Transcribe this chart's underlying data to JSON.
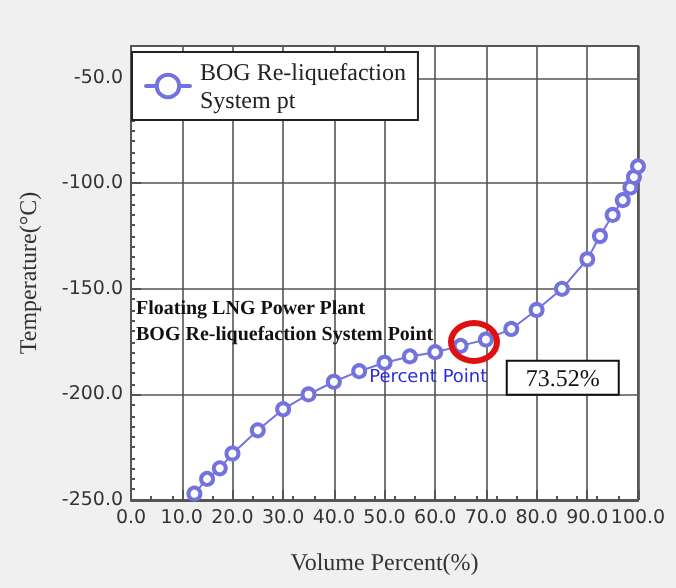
{
  "chart_data": {
    "type": "line",
    "xlabel": "Volume Percent(%)",
    "ylabel": "Temperature(°C)",
    "x": [
      12.5,
      15,
      17.5,
      20,
      25,
      30,
      35,
      40,
      45,
      50,
      55,
      60,
      65,
      70,
      75,
      80,
      85,
      90,
      92.5,
      95,
      97,
      98.5,
      99.2,
      100
    ],
    "series": [
      {
        "name": "BOG Re-liquefaction\nSystem pt",
        "color": "#7373e0",
        "values": [
          -247,
          -240,
          -235,
          -228,
          -217,
          -207,
          -200,
          -194,
          -189,
          -185,
          -182,
          -180,
          -177,
          -174,
          -169,
          -160,
          -150,
          -136,
          -125,
          -115,
          -108,
          -102,
          -97,
          -92
        ]
      }
    ],
    "xlim": [
      0,
      100
    ],
    "xticks": [
      {
        "value": 0,
        "label": "0.0"
      },
      {
        "value": 10,
        "label": "10.0"
      },
      {
        "value": 20,
        "label": "20.0"
      },
      {
        "value": 30,
        "label": "30.0"
      },
      {
        "value": 40,
        "label": "40.0"
      },
      {
        "value": 50,
        "label": "50.0"
      },
      {
        "value": 60,
        "label": "60.0"
      },
      {
        "value": 70,
        "label": "70.0"
      },
      {
        "value": 80,
        "label": "80.0"
      },
      {
        "value": 90,
        "label": "90.0"
      },
      {
        "value": 100,
        "label": "100.0"
      }
    ],
    "ylim": [
      -250,
      -35
    ],
    "yticks": [
      {
        "value": -250,
        "label": "-250.0"
      },
      {
        "value": -200,
        "label": "-200.0"
      },
      {
        "value": -150,
        "label": "-150.0"
      },
      {
        "value": -100,
        "label": "-100.0"
      },
      {
        "value": -50,
        "label": "-50.0"
      }
    ],
    "grid": true,
    "legend": "top left",
    "marker": "circle",
    "line_style": "solid",
    "annotations": [
      "Floating LNG Power Plant\nBOG Re-liquefaction System Point",
      {
        "text": "Percent Point",
        "x": 45,
        "y": -189
      },
      {
        "text": "73.52%",
        "x": 73.52,
        "y": -176
      }
    ]
  }
}
